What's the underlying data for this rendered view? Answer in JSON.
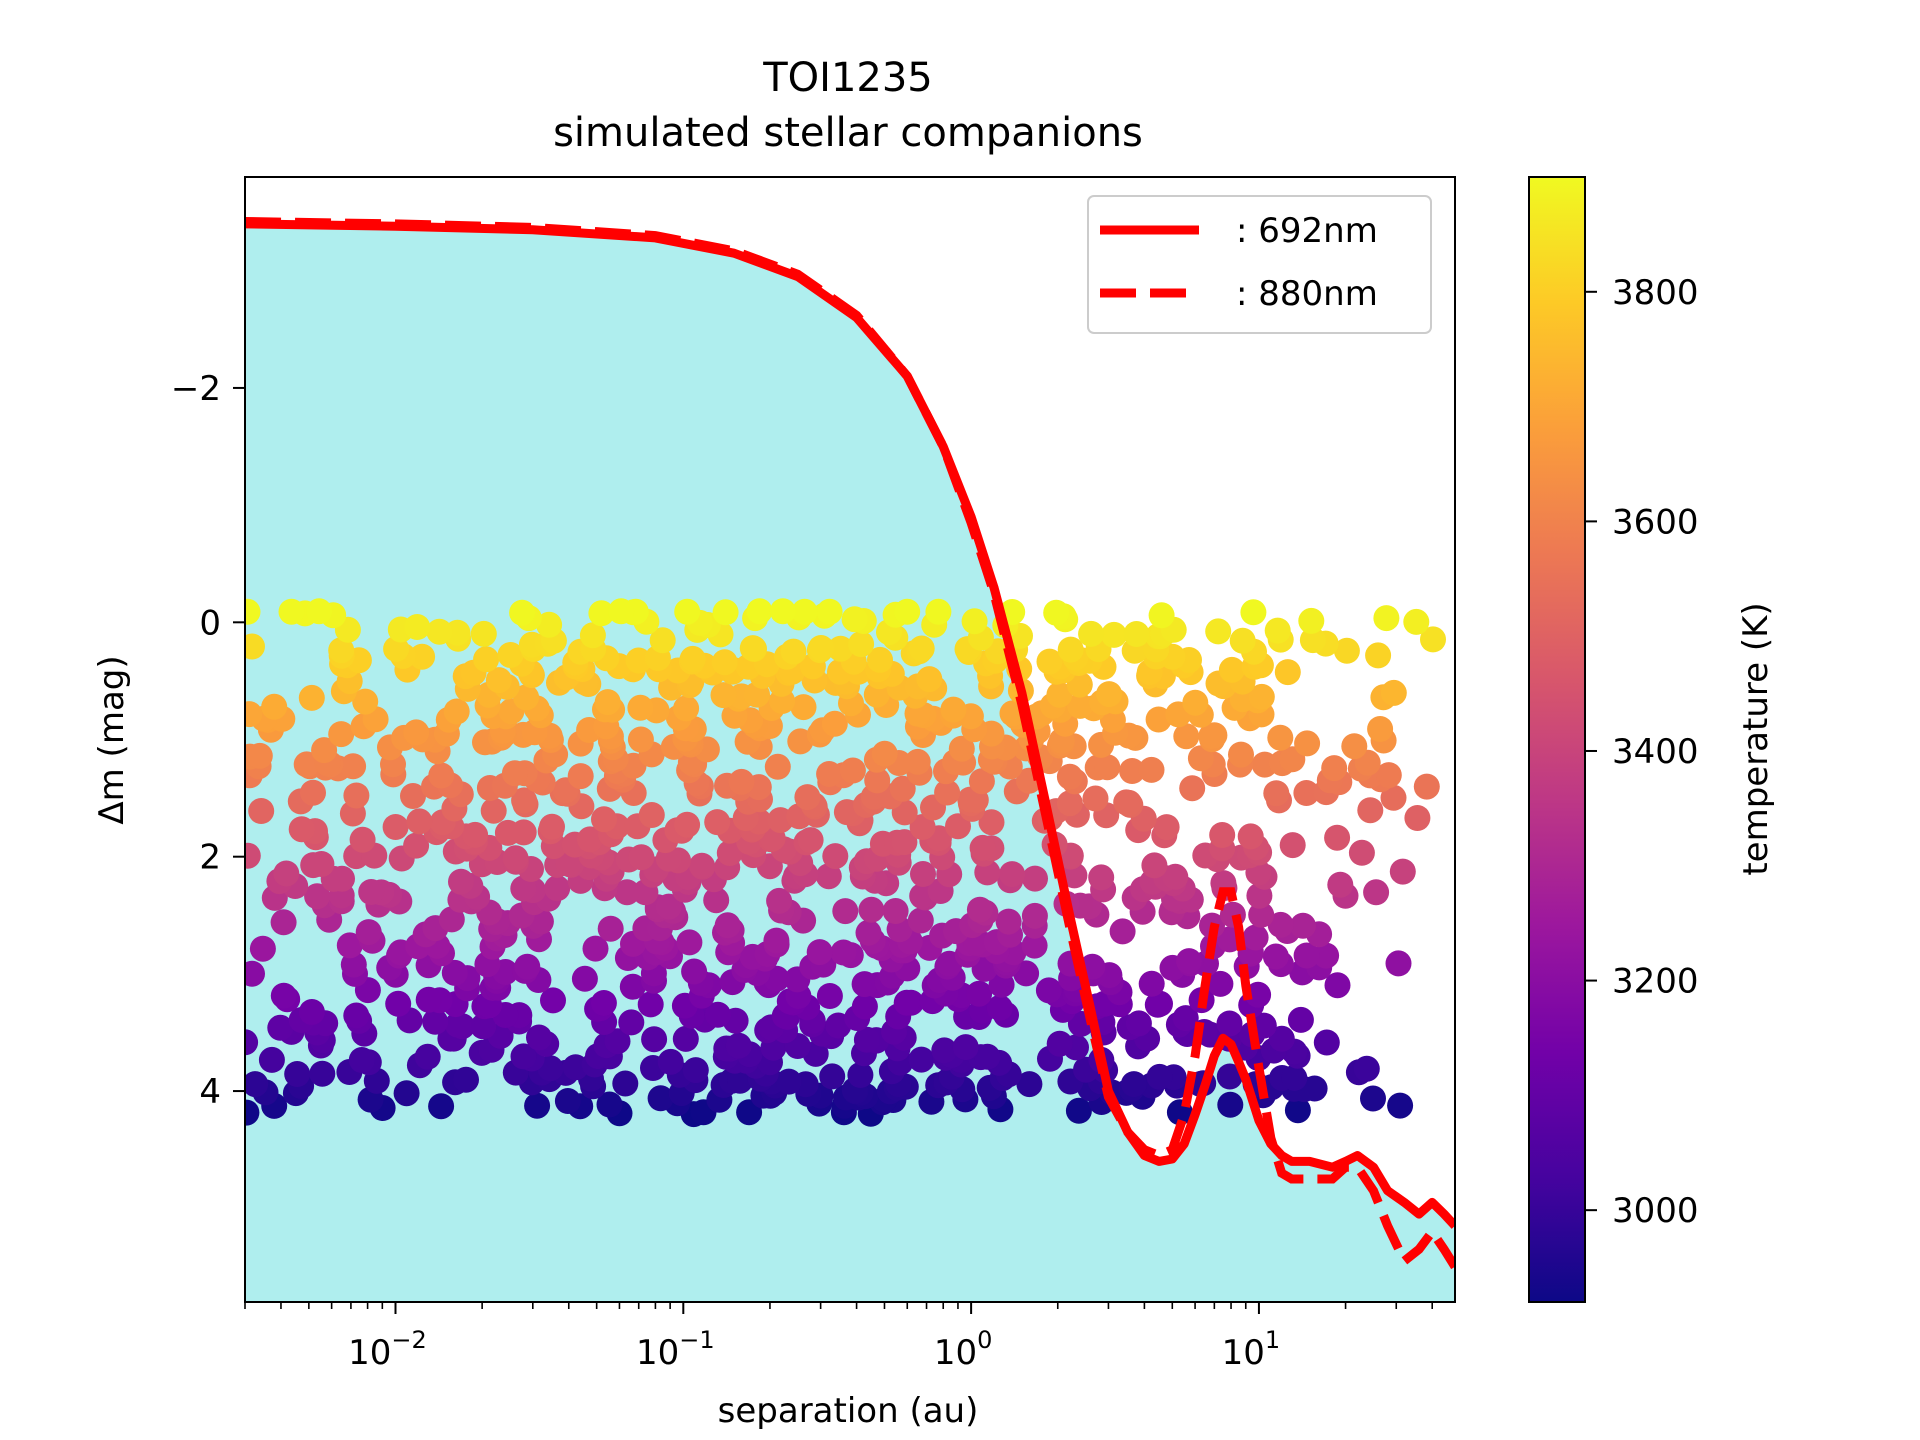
{
  "chart_data": {
    "type": "scatter",
    "title": "TOI1235",
    "subtitle": "simulated stellar companions",
    "xlabel": "separation (au)",
    "ylabel": "Δm (mag)",
    "xscale": "log",
    "xlim": [
      0.003,
      48
    ],
    "ylim": [
      5.8,
      -3.8
    ],
    "y_inverted": true,
    "x_ticks": [
      {
        "value": 0.01,
        "base": "10",
        "exp": "−2"
      },
      {
        "value": 0.1,
        "base": "10",
        "exp": "−1"
      },
      {
        "value": 1,
        "base": "10",
        "exp": "0"
      },
      {
        "value": 10,
        "base": "10",
        "exp": "1"
      }
    ],
    "y_ticks": [
      {
        "value": -2,
        "label": "−2"
      },
      {
        "value": 0,
        "label": "0"
      },
      {
        "value": 2,
        "label": "2"
      },
      {
        "value": 4,
        "label": "4"
      }
    ],
    "fill_color": "#afeeee",
    "line_color": "#ff0000",
    "series": [
      {
        "name": "692nm",
        "legend": ": 692nm",
        "style": "solid",
        "x": [
          0.003,
          0.01,
          0.03,
          0.08,
          0.15,
          0.25,
          0.4,
          0.6,
          0.8,
          1.0,
          1.2,
          1.5,
          1.8,
          2.2,
          2.6,
          3.0,
          3.5,
          4.0,
          4.5,
          5.0,
          5.5,
          6.0,
          6.5,
          7.0,
          7.5,
          8.0,
          8.5,
          9.0,
          10.0,
          11.0,
          12.0,
          13.0,
          15.0,
          18.0,
          20.0,
          22.0,
          25.0,
          28.0,
          32.0,
          36.0,
          40.0,
          44.0,
          48.0
        ],
        "y": [
          -3.4,
          -3.38,
          -3.35,
          -3.28,
          -3.15,
          -2.95,
          -2.6,
          -2.1,
          -1.5,
          -0.9,
          -0.3,
          0.6,
          1.5,
          2.5,
          3.3,
          4.0,
          4.35,
          4.55,
          4.6,
          4.58,
          4.45,
          4.2,
          3.95,
          3.7,
          3.55,
          3.6,
          3.75,
          3.9,
          4.25,
          4.45,
          4.55,
          4.6,
          4.6,
          4.65,
          4.6,
          4.55,
          4.65,
          4.85,
          4.95,
          5.05,
          4.95,
          5.05,
          5.15
        ]
      },
      {
        "name": "880nm",
        "legend": ": 880nm",
        "style": "dashed",
        "x": [
          0.003,
          0.01,
          0.03,
          0.08,
          0.15,
          0.25,
          0.4,
          0.6,
          0.8,
          1.0,
          1.2,
          1.5,
          1.8,
          2.2,
          2.6,
          3.0,
          3.5,
          4.0,
          4.5,
          5.0,
          5.5,
          6.0,
          6.5,
          7.0,
          7.5,
          8.0,
          8.5,
          9.0,
          10.0,
          11.0,
          12.0,
          13.0,
          15.0,
          18.0,
          20.0,
          22.0,
          25.0,
          28.0,
          32.0,
          36.0,
          40.0,
          44.0,
          48.0
        ],
        "y": [
          -3.42,
          -3.4,
          -3.37,
          -3.3,
          -3.17,
          -2.97,
          -2.62,
          -2.1,
          -1.5,
          -0.85,
          -0.25,
          0.7,
          1.6,
          2.6,
          3.4,
          4.05,
          4.35,
          4.5,
          4.55,
          4.5,
          4.2,
          3.7,
          3.1,
          2.6,
          2.3,
          2.3,
          2.6,
          3.1,
          3.8,
          4.4,
          4.7,
          4.75,
          4.75,
          4.75,
          4.65,
          4.65,
          4.85,
          5.15,
          5.45,
          5.35,
          5.2,
          5.35,
          5.5
        ]
      }
    ],
    "scatter": {
      "description_count": 2600,
      "x_range": [
        0.003,
        48
      ],
      "y_range": [
        -0.1,
        4.2
      ],
      "color_by": "temperature"
    },
    "colorbar": {
      "label": "temperature (K)",
      "range": [
        2920,
        3900
      ],
      "ticks": [
        "3000",
        "3200",
        "3400",
        "3600",
        "3800"
      ],
      "tick_values": [
        3000,
        3200,
        3400,
        3600,
        3800
      ],
      "colormap": "plasma",
      "stops": [
        "#0d0887",
        "#46039f",
        "#7201a8",
        "#9c179e",
        "#bd3786",
        "#d8576b",
        "#ed7953",
        "#fb9f3a",
        "#fdca26",
        "#f0f921"
      ]
    },
    "legend_position": "top-right"
  }
}
